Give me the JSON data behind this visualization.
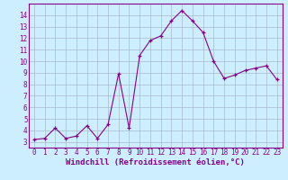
{
  "x": [
    0,
    1,
    2,
    3,
    4,
    5,
    6,
    7,
    8,
    9,
    10,
    11,
    12,
    13,
    14,
    15,
    16,
    17,
    18,
    19,
    20,
    21,
    22,
    23
  ],
  "y": [
    3.2,
    3.3,
    4.2,
    3.3,
    3.5,
    4.4,
    3.3,
    4.5,
    8.9,
    4.2,
    10.5,
    11.8,
    12.2,
    13.5,
    14.4,
    13.5,
    12.5,
    10.0,
    8.5,
    8.8,
    9.2,
    9.4,
    9.6,
    8.4
  ],
  "line_color": "#880088",
  "bg_color": "#cceeff",
  "grid_color": "#aabbcc",
  "xlabel": "Windchill (Refroidissement éolien,°C)",
  "ylim": [
    2.5,
    15.0
  ],
  "xlim": [
    -0.5,
    23.5
  ],
  "yticks": [
    3,
    4,
    5,
    6,
    7,
    8,
    9,
    10,
    11,
    12,
    13,
    14
  ],
  "xticks": [
    0,
    1,
    2,
    3,
    4,
    5,
    6,
    7,
    8,
    9,
    10,
    11,
    12,
    13,
    14,
    15,
    16,
    17,
    18,
    19,
    20,
    21,
    22,
    23
  ],
  "tick_fontsize": 5.5,
  "xlabel_fontsize": 6.5
}
